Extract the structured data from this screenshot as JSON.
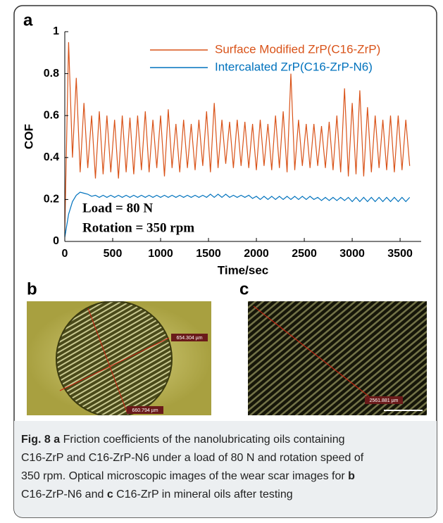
{
  "chart_data": {
    "type": "line",
    "panel_label": "a",
    "xlabel": "Time/sec",
    "ylabel": "COF",
    "xlim": [
      0,
      3720
    ],
    "ylim": [
      0,
      1
    ],
    "xticks": [
      0,
      500,
      1000,
      1500,
      2000,
      2500,
      3000,
      3500
    ],
    "yticks": [
      0,
      0.2,
      0.4,
      0.6,
      0.8,
      1
    ],
    "x": [
      0,
      40,
      80,
      120,
      160,
      200,
      240,
      280,
      320,
      360,
      400,
      440,
      480,
      520,
      560,
      600,
      640,
      680,
      720,
      760,
      800,
      840,
      880,
      920,
      960,
      1000,
      1040,
      1080,
      1120,
      1160,
      1200,
      1240,
      1280,
      1320,
      1360,
      1400,
      1440,
      1480,
      1520,
      1560,
      1600,
      1640,
      1680,
      1720,
      1760,
      1800,
      1840,
      1880,
      1920,
      1960,
      2000,
      2040,
      2080,
      2120,
      2160,
      2200,
      2240,
      2280,
      2320,
      2360,
      2400,
      2440,
      2480,
      2520,
      2560,
      2600,
      2640,
      2680,
      2720,
      2760,
      2800,
      2840,
      2880,
      2920,
      2960,
      3000,
      3040,
      3080,
      3120,
      3160,
      3200,
      3240,
      3280,
      3320,
      3360,
      3400,
      3440,
      3480,
      3520,
      3560,
      3600
    ],
    "series": [
      {
        "name": "Surface Modified ZrP(C16-ZrP)",
        "color": "#d95319",
        "values": [
          0.05,
          0.95,
          0.4,
          0.78,
          0.33,
          0.66,
          0.35,
          0.6,
          0.3,
          0.62,
          0.32,
          0.6,
          0.33,
          0.58,
          0.3,
          0.6,
          0.33,
          0.59,
          0.32,
          0.6,
          0.34,
          0.62,
          0.33,
          0.58,
          0.35,
          0.6,
          0.31,
          0.63,
          0.35,
          0.56,
          0.33,
          0.58,
          0.35,
          0.56,
          0.34,
          0.58,
          0.36,
          0.62,
          0.33,
          0.66,
          0.35,
          0.58,
          0.37,
          0.57,
          0.35,
          0.58,
          0.36,
          0.57,
          0.35,
          0.56,
          0.34,
          0.58,
          0.36,
          0.56,
          0.34,
          0.6,
          0.35,
          0.62,
          0.33,
          0.8,
          0.34,
          0.58,
          0.36,
          0.56,
          0.35,
          0.56,
          0.36,
          0.55,
          0.35,
          0.57,
          0.34,
          0.6,
          0.33,
          0.73,
          0.31,
          0.66,
          0.32,
          0.72,
          0.31,
          0.64,
          0.33,
          0.6,
          0.35,
          0.58,
          0.34,
          0.6,
          0.33,
          0.6,
          0.34,
          0.58,
          0.36
        ]
      },
      {
        "name": "Intercalated ZrP(C16-ZrP-N6)",
        "color": "#0072bd",
        "values": [
          0.02,
          0.13,
          0.19,
          0.22,
          0.235,
          0.23,
          0.225,
          0.215,
          0.22,
          0.21,
          0.22,
          0.21,
          0.22,
          0.21,
          0.22,
          0.21,
          0.22,
          0.21,
          0.22,
          0.21,
          0.22,
          0.21,
          0.22,
          0.21,
          0.22,
          0.21,
          0.22,
          0.21,
          0.22,
          0.21,
          0.22,
          0.21,
          0.22,
          0.21,
          0.22,
          0.21,
          0.22,
          0.21,
          0.225,
          0.21,
          0.225,
          0.21,
          0.225,
          0.21,
          0.22,
          0.21,
          0.22,
          0.21,
          0.22,
          0.205,
          0.215,
          0.2,
          0.215,
          0.2,
          0.215,
          0.2,
          0.215,
          0.2,
          0.215,
          0.2,
          0.215,
          0.2,
          0.215,
          0.2,
          0.215,
          0.2,
          0.21,
          0.195,
          0.21,
          0.195,
          0.21,
          0.195,
          0.21,
          0.195,
          0.21,
          0.19,
          0.21,
          0.19,
          0.21,
          0.19,
          0.21,
          0.19,
          0.21,
          0.19,
          0.21,
          0.19,
          0.21,
          0.19,
          0.21,
          0.19,
          0.21
        ]
      }
    ],
    "annotations": [
      "Load = 80 N",
      "Rotation = 350 rpm"
    ]
  },
  "images": [
    {
      "panel_label": "b",
      "measurements": [
        "654.304 µm",
        "660.794 µm"
      ]
    },
    {
      "panel_label": "c",
      "measurements": [
        "2561.881 µm"
      ]
    }
  ],
  "caption": {
    "lines": [
      [
        {
          "text": "Fig. 8",
          "bold": true
        },
        {
          "text": " ",
          "bold": false
        },
        {
          "text": "a",
          "bold": true
        },
        {
          "text": " Friction coefficients of the nanolubricating oils containing",
          "bold": false
        }
      ],
      [
        {
          "text": "C16-ZrP and C16-ZrP-N6 under a load of 80 N and rotation speed of",
          "bold": false
        }
      ],
      [
        {
          "text": "350 rpm. Optical microscopic images of the wear scar images for ",
          "bold": false
        },
        {
          "text": "b",
          "bold": true
        }
      ],
      [
        {
          "text": "C16-ZrP-N6 and ",
          "bold": false
        },
        {
          "text": "c",
          "bold": true
        },
        {
          "text": " C16-ZrP in mineral oils after testing",
          "bold": false
        }
      ]
    ]
  }
}
